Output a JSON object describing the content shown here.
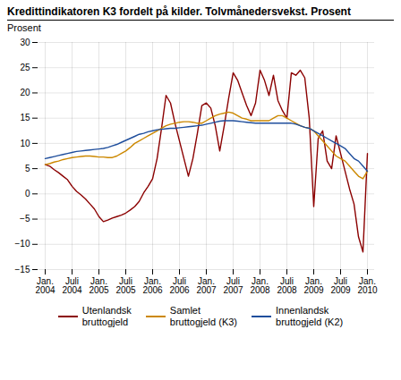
{
  "chart_data": {
    "type": "line",
    "title": "Kredittindikatoren K3 fordelt på kilder. Tolvmånedersvekst. Prosent",
    "ylabel": "Prosent",
    "categories": [
      "Jan.\n2004",
      null,
      null,
      null,
      null,
      null,
      "Juli\n2004",
      null,
      null,
      null,
      null,
      null,
      "Jan.\n2005",
      null,
      null,
      null,
      null,
      null,
      "Juli\n2005",
      null,
      null,
      null,
      null,
      null,
      "Jan.\n2006",
      null,
      null,
      null,
      null,
      null,
      "Juli\n2006",
      null,
      null,
      null,
      null,
      null,
      "Jan.\n2007",
      null,
      null,
      null,
      null,
      null,
      "Juli\n2007",
      null,
      null,
      null,
      null,
      null,
      "Jan.\n2008",
      null,
      null,
      null,
      null,
      null,
      "Juli\n2008",
      null,
      null,
      null,
      null,
      null,
      "Jan.\n2009",
      null,
      null,
      null,
      null,
      null,
      "Juli\n2009",
      null,
      null,
      null,
      null,
      null,
      "Jan.\n2010"
    ],
    "series": [
      {
        "name": "Utenlandsk\nbruttogjeld",
        "color": "#8B0000",
        "values": [
          5.8,
          5.5,
          4.8,
          4.2,
          3.5,
          2.8,
          1.5,
          0.5,
          -0.2,
          -1.0,
          -2.0,
          -3.0,
          -4.5,
          -5.5,
          -5.2,
          -4.8,
          -4.5,
          -4.2,
          -3.8,
          -3.2,
          -2.5,
          -1.5,
          0.2,
          1.5,
          3.0,
          7.0,
          13.0,
          19.5,
          18.0,
          14.0,
          10.5,
          7.0,
          3.5,
          7.0,
          12.0,
          17.5,
          18.0,
          17.0,
          13.5,
          8.5,
          13.5,
          19.0,
          24.0,
          22.5,
          20.0,
          17.5,
          15.5,
          18.0,
          24.5,
          22.5,
          19.5,
          23.5,
          18.5,
          16.5,
          15.0,
          24.0,
          23.5,
          24.5,
          23.0,
          15.0,
          -2.5,
          11.0,
          12.5,
          6.5,
          5.0,
          11.5,
          8.0,
          4.5,
          1.0,
          -2.0,
          -8.5,
          -11.5,
          8.0
        ]
      },
      {
        "name": "Samlet\nbruttogjeld (K3)",
        "color": "#CC8800",
        "values": [
          5.8,
          6.0,
          6.3,
          6.5,
          6.8,
          7.0,
          7.2,
          7.3,
          7.4,
          7.5,
          7.5,
          7.4,
          7.3,
          7.3,
          7.2,
          7.2,
          7.5,
          8.0,
          8.5,
          9.2,
          10.0,
          10.5,
          11.0,
          11.5,
          12.0,
          12.5,
          13.0,
          13.5,
          13.8,
          14.0,
          14.2,
          14.3,
          14.3,
          14.2,
          14.0,
          14.0,
          14.5,
          15.0,
          15.5,
          15.8,
          16.0,
          16.2,
          16.0,
          15.5,
          15.0,
          14.8,
          14.5,
          14.5,
          14.5,
          14.5,
          14.5,
          15.0,
          15.5,
          15.5,
          15.0,
          14.5,
          14.0,
          13.5,
          13.2,
          13.0,
          12.5,
          11.5,
          10.5,
          9.5,
          8.5,
          7.5,
          7.0,
          6.5,
          5.5,
          4.5,
          3.5,
          3.0,
          4.5
        ]
      },
      {
        "name": "Innenlandsk\nbruttogjeld (K2)",
        "color": "#1F4E9C",
        "values": [
          7.0,
          7.2,
          7.4,
          7.6,
          7.8,
          8.0,
          8.2,
          8.4,
          8.5,
          8.6,
          8.7,
          8.8,
          8.9,
          9.0,
          9.2,
          9.5,
          9.8,
          10.2,
          10.6,
          11.0,
          11.4,
          11.8,
          12.0,
          12.3,
          12.5,
          12.7,
          12.8,
          12.9,
          13.0,
          13.0,
          13.1,
          13.2,
          13.3,
          13.4,
          13.5,
          13.6,
          13.8,
          14.0,
          14.2,
          14.4,
          14.5,
          14.5,
          14.5,
          14.4,
          14.3,
          14.2,
          14.1,
          14.0,
          14.0,
          14.0,
          14.0,
          14.0,
          14.0,
          14.0,
          14.0,
          14.0,
          13.8,
          13.5,
          13.2,
          13.0,
          12.5,
          12.0,
          11.5,
          11.0,
          10.5,
          10.0,
          9.5,
          9.0,
          8.0,
          7.0,
          6.5,
          5.5,
          4.5
        ]
      }
    ],
    "ylim": [
      -15,
      30
    ],
    "yticks": [
      -15,
      -10,
      -5,
      0,
      5,
      10,
      15,
      20,
      25,
      30
    ],
    "grid": true,
    "legend": "bottom"
  }
}
